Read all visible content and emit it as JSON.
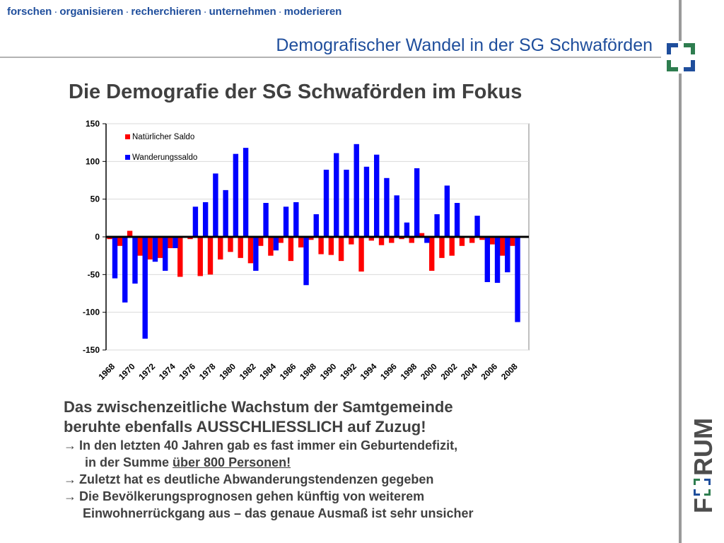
{
  "header": {
    "nav_items": [
      "forschen",
      "organisieren",
      "recherchieren",
      "unternehmen",
      "moderieren"
    ],
    "separator": "·",
    "subtitle": "Demografischer Wandel in der SG Schwaförden"
  },
  "main": {
    "heading": "Die Demografie der SG Schwaförden im Fokus"
  },
  "logo": {
    "side_text": "FORUM",
    "side_text_parts": [
      "F",
      "RUM"
    ]
  },
  "colors": {
    "accent_blue": "#1f4e9c",
    "series_natural": "#ff0000",
    "series_migration": "#0000ff",
    "logo_green": "#2e7d4f",
    "logo_blue": "#1f4e9c",
    "text_gray": "#404040"
  },
  "chart_data": {
    "type": "bar",
    "title": "",
    "xlabel": "",
    "ylabel": "",
    "ylim": [
      -150,
      150
    ],
    "yticks": [
      150,
      100,
      50,
      0,
      -50,
      -100,
      -150
    ],
    "grid": true,
    "legend_position": "top-left",
    "categories": [
      "1968",
      "1969",
      "1970",
      "1971",
      "1972",
      "1973",
      "1974",
      "1975",
      "1976",
      "1977",
      "1978",
      "1979",
      "1980",
      "1981",
      "1982",
      "1983",
      "1984",
      "1985",
      "1986",
      "1987",
      "1988",
      "1989",
      "1990",
      "1991",
      "1992",
      "1993",
      "1994",
      "1995",
      "1996",
      "1997",
      "1998",
      "1999",
      "2000",
      "2001",
      "2002",
      "2003",
      "2004",
      "2005",
      "2006",
      "2007",
      "2008",
      "2009"
    ],
    "tick_labels": [
      "1968",
      "1970",
      "1972",
      "1974",
      "1976",
      "1978",
      "1980",
      "1982",
      "1984",
      "1986",
      "1988",
      "1990",
      "1992",
      "1994",
      "1996",
      "1998",
      "2000",
      "2002",
      "2004",
      "2006",
      "2008"
    ],
    "series": [
      {
        "name": "Natürlicher Saldo",
        "color": "#ff0000",
        "values": [
          -3,
          -12,
          8,
          -25,
          -30,
          -28,
          -15,
          -53,
          -3,
          -52,
          -50,
          -30,
          -20,
          -28,
          -35,
          -12,
          -25,
          -8,
          -32,
          -14,
          -4,
          -23,
          -24,
          -32,
          -10,
          -46,
          -5,
          -11,
          -8,
          -3,
          -8,
          5,
          -45,
          -28,
          -25,
          -12,
          -8,
          -4,
          -10,
          -25,
          -12,
          0
        ]
      },
      {
        "name": "Wanderungssaldo",
        "color": "#0000ff",
        "values": [
          -55,
          -87,
          -62,
          -135,
          -33,
          -45,
          -15,
          0,
          40,
          46,
          84,
          62,
          110,
          118,
          -45,
          45,
          -18,
          40,
          46,
          -64,
          30,
          89,
          111,
          89,
          123,
          93,
          109,
          78,
          55,
          19,
          91,
          -8,
          30,
          68,
          45,
          0,
          28,
          -60,
          -61,
          -47,
          -113,
          0
        ]
      }
    ]
  },
  "text": {
    "line1": "Das zwischenzeitliche Wachstum der Samtgemeinde",
    "line2": "beruhte ebenfalls AUSSCHLIESSLICH auf Zuzug!",
    "arrow": "→",
    "b1a": "In den letzten 40 Jahren gab es fast immer ein Geburtendefizit,",
    "b1b_prefix": "in der Summe ",
    "b1b_underlined": "über 800 Personen!",
    "b2": "Zuletzt hat es deutliche Abwanderungstendenzen gegeben",
    "b3a": "Die Bevölkerungsprognosen gehen künftig von weiterem",
    "b3b": "Einwohnerrückgang aus – das genaue Ausmaß ist sehr unsicher"
  }
}
